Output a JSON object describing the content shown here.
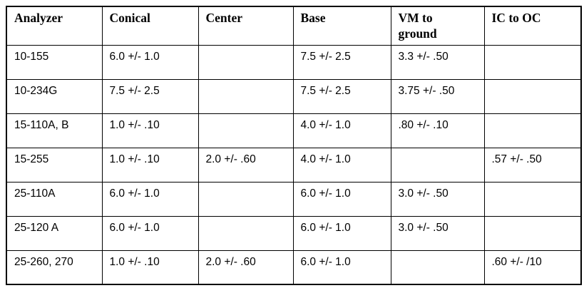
{
  "colors": {
    "border": "#000000",
    "text": "#000000",
    "background": "#ffffff"
  },
  "table": {
    "columns": [
      "Analyzer",
      "Conical",
      "Center",
      "Base",
      "VM to\nground",
      "IC to OC"
    ],
    "rows": [
      [
        "10-155",
        "6.0 +/- 1.0",
        "",
        "7.5 +/- 2.5",
        "3.3 +/- .50",
        ""
      ],
      [
        "10-234G",
        "7.5 +/- 2.5",
        "",
        "7.5 +/- 2.5",
        "3.75 +/- .50",
        ""
      ],
      [
        "15-110A, B",
        "1.0 +/- .10",
        "",
        "4.0 +/- 1.0",
        ".80 +/- .10",
        ""
      ],
      [
        "15-255",
        "1.0 +/- .10",
        "2.0 +/- .60",
        "4.0 +/- 1.0",
        "",
        ".57 +/- .50"
      ],
      [
        "25-110A",
        "6.0 +/- 1.0",
        "",
        "6.0 +/- 1.0",
        "3.0 +/- .50",
        ""
      ],
      [
        "25-120 A",
        "6.0 +/- 1.0",
        "",
        "6.0 +/- 1.0",
        "3.0 +/- .50",
        ""
      ],
      [
        "25-260, 270",
        "1.0 +/- .10",
        "2.0 +/- .60",
        "6.0 +/- 1.0",
        "",
        ".60 +/- /10"
      ]
    ]
  }
}
